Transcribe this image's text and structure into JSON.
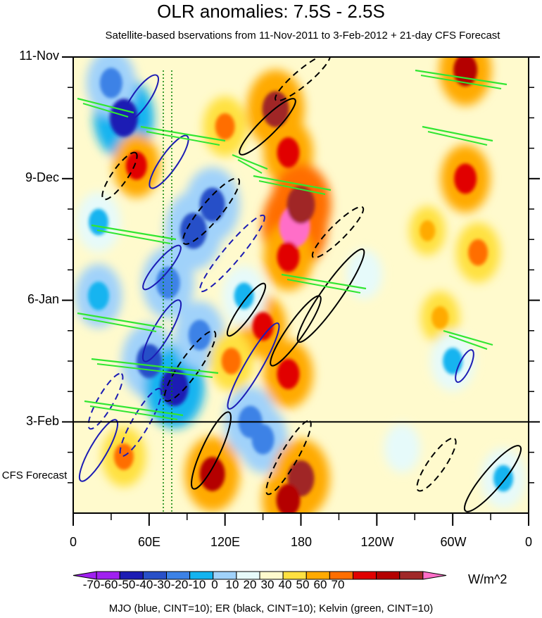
{
  "chart_data": {
    "type": "heatmap",
    "title": "OLR anomalies: 7.5S - 2.5S",
    "subtitle": "Satellite-based bservations from 11-Nov-2011 to 3-Feb-2012 + 21-day CFS Forecast",
    "y_axis": {
      "ticks": [
        "11-Nov",
        "9-Dec",
        "6-Jan",
        "3-Feb"
      ],
      "range_days": [
        0,
        105
      ],
      "forecast_start_day": 84,
      "forecast_label": "CFS Forecast"
    },
    "x_axis": {
      "ticks": [
        "0",
        "60E",
        "120E",
        "180",
        "120W",
        "60W",
        "0"
      ],
      "range_lon": [
        0,
        360
      ]
    },
    "colorbar": {
      "labels": [
        "-70",
        "-60",
        "-50",
        "-40",
        "-30",
        "-20",
        "-10",
        "0",
        "10",
        "20",
        "30",
        "40",
        "50",
        "60",
        "70"
      ],
      "values": [
        -70,
        -60,
        -50,
        -40,
        -30,
        -20,
        -10,
        0,
        10,
        20,
        30,
        40,
        50,
        60,
        70
      ],
      "colors": [
        "#a020f0",
        "#1c1cb4",
        "#2850c8",
        "#3c82e6",
        "#14b4f0",
        "#a0d2fa",
        "#e6fafa",
        "#fffacd",
        "#ffe141",
        "#ffaa00",
        "#ff6e00",
        "#e10000",
        "#b40000",
        "#a02828",
        "#ff6ec8"
      ],
      "units": "W/m^2"
    },
    "contour_note": "MJO (blue, CINT=10); ER (black, CINT=10); Kelvin (green, CINT=10)",
    "anomalies": [
      {
        "lon": 40,
        "day": 14,
        "value": -60
      },
      {
        "lon": 30,
        "day": 6,
        "value": -40
      },
      {
        "lon": 95,
        "day": 40,
        "value": -55
      },
      {
        "lon": 110,
        "day": 34,
        "value": -50
      },
      {
        "lon": 75,
        "day": 52,
        "value": -45
      },
      {
        "lon": 60,
        "day": 70,
        "value": -50
      },
      {
        "lon": 80,
        "day": 76,
        "value": -60
      },
      {
        "lon": 140,
        "day": 84,
        "value": -45
      },
      {
        "lon": 150,
        "day": 88,
        "value": -40
      },
      {
        "lon": 20,
        "day": 55,
        "value": -35
      },
      {
        "lon": 160,
        "day": 12,
        "value": 55
      },
      {
        "lon": 170,
        "day": 22,
        "value": 40
      },
      {
        "lon": 175,
        "day": 39,
        "value": 70
      },
      {
        "lon": 180,
        "day": 34,
        "value": 60
      },
      {
        "lon": 170,
        "day": 46,
        "value": 40
      },
      {
        "lon": 150,
        "day": 62,
        "value": 35
      },
      {
        "lon": 170,
        "day": 73,
        "value": 40
      },
      {
        "lon": 180,
        "day": 97,
        "value": 55
      },
      {
        "lon": 170,
        "day": 102,
        "value": 45
      },
      {
        "lon": 110,
        "day": 96,
        "value": 50
      },
      {
        "lon": 50,
        "day": 25,
        "value": 35
      },
      {
        "lon": 40,
        "day": 92,
        "value": 30
      },
      {
        "lon": 310,
        "day": 3,
        "value": 45
      },
      {
        "lon": 310,
        "day": 28,
        "value": 40
      },
      {
        "lon": 320,
        "day": 45,
        "value": 30
      },
      {
        "lon": 290,
        "day": 60,
        "value": 20
      },
      {
        "lon": 300,
        "day": 70,
        "value": -30
      },
      {
        "lon": 340,
        "day": 97,
        "value": -30
      },
      {
        "lon": 230,
        "day": 50,
        "value": -15
      },
      {
        "lon": 100,
        "day": 64,
        "value": -40
      },
      {
        "lon": 125,
        "day": 70,
        "value": 30
      },
      {
        "lon": 135,
        "day": 55,
        "value": -30
      },
      {
        "lon": 260,
        "day": 90,
        "value": -15
      },
      {
        "lon": 280,
        "day": 40,
        "value": 15
      },
      {
        "lon": 20,
        "day": 38,
        "value": -30
      },
      {
        "lon": 120,
        "day": 16,
        "value": 30
      }
    ]
  }
}
